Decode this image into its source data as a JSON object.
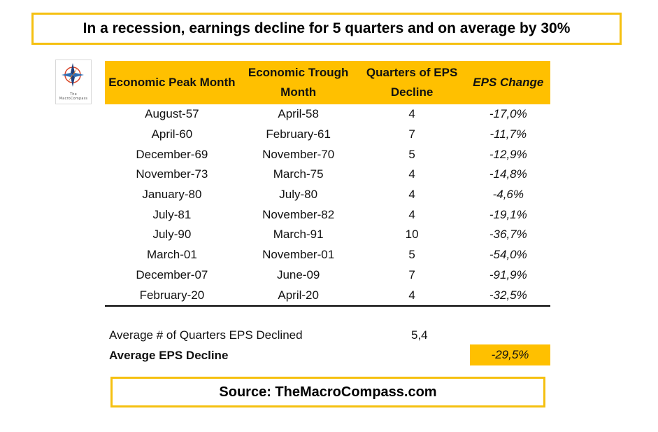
{
  "title": "In a recession, earnings decline for 5 quarters and on average by 30%",
  "logo": {
    "text": "The MacroCompass",
    "icon": "compass-icon"
  },
  "colors": {
    "accent": "#FFC000",
    "box_border": "#F5C010"
  },
  "chart_data": {
    "type": "table",
    "columns": [
      "Economic Peak Month",
      "Economic Trough Month",
      "Quarters of EPS Decline",
      "EPS Change"
    ],
    "rows": [
      [
        "August-57",
        "April-58",
        "4",
        "-17,0%"
      ],
      [
        "April-60",
        "February-61",
        "7",
        "-11,7%"
      ],
      [
        "December-69",
        "November-70",
        "5",
        "-12,9%"
      ],
      [
        "November-73",
        "March-75",
        "4",
        "-14,8%"
      ],
      [
        "January-80",
        "July-80",
        "4",
        "-4,6%"
      ],
      [
        "July-81",
        "November-82",
        "4",
        "-19,1%"
      ],
      [
        "July-90",
        "March-91",
        "10",
        "-36,7%"
      ],
      [
        "March-01",
        "November-01",
        "5",
        "-54,0%"
      ],
      [
        "December-07",
        "June-09",
        "7",
        "-91,9%"
      ],
      [
        "February-20",
        "April-20",
        "4",
        "-32,5%"
      ]
    ]
  },
  "summary": {
    "avg_quarters_label": "Average # of Quarters EPS Declined",
    "avg_quarters_value": "5,4",
    "avg_eps_label": "Average EPS Decline",
    "avg_eps_value": "-29,5%"
  },
  "source": "Source: TheMacroCompass.com"
}
